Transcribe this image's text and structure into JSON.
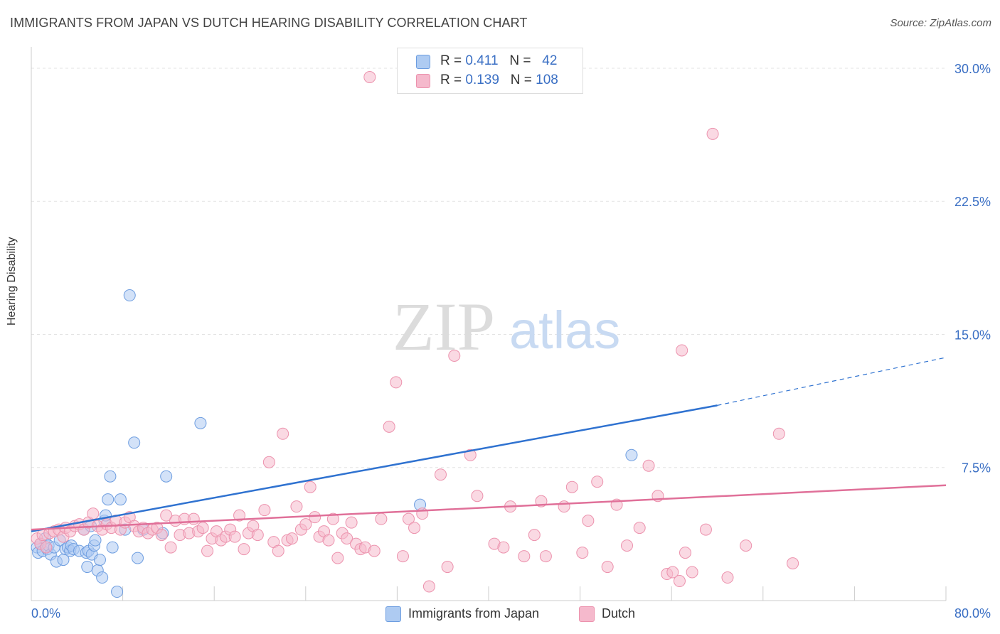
{
  "title": "IMMIGRANTS FROM JAPAN VS DUTCH HEARING DISABILITY CORRELATION CHART",
  "source": "Source: ZipAtlas.com",
  "watermark": {
    "zip": "ZIP",
    "atlas": "atlas"
  },
  "legend": {
    "rows": [
      {
        "r_label": "R = ",
        "r_value": "0.411",
        "n_label": "N = ",
        "n_value": "42",
        "color": "#aecbf2"
      },
      {
        "r_label": "R = ",
        "r_value": "0.139",
        "n_label": "N = ",
        "n_value": "108",
        "color": "#f5b9cc"
      }
    ]
  },
  "chart_data": {
    "type": "scatter",
    "ylabel": "Hearing Disability",
    "xlim": [
      0,
      80
    ],
    "ylim": [
      0,
      31.2
    ],
    "x_tick_labels": [
      "0.0%",
      "80.0%"
    ],
    "y_ticks": [
      7.5,
      15.0,
      22.5,
      30.0
    ],
    "y_tick_labels": [
      "7.5%",
      "15.0%",
      "22.5%",
      "30.0%"
    ],
    "grid": true,
    "legend_position": "top-center",
    "series": [
      {
        "name": "Immigrants from Japan",
        "color": "#6d9de0",
        "fill": "#aecbf2",
        "line_color": "#2f72d0",
        "trend": {
          "x0": 0,
          "y0": 3.9,
          "x1": 60,
          "y1": 11.0,
          "dash_x1": 80,
          "dash_y1": 13.7
        },
        "points": [
          [
            0.5,
            3.0
          ],
          [
            0.6,
            2.7
          ],
          [
            0.8,
            3.2
          ],
          [
            1.0,
            2.8
          ],
          [
            1.2,
            3.5
          ],
          [
            1.4,
            2.9
          ],
          [
            1.5,
            3.1
          ],
          [
            1.7,
            2.6
          ],
          [
            2.0,
            3.0
          ],
          [
            2.2,
            2.2
          ],
          [
            2.5,
            3.4
          ],
          [
            2.8,
            2.3
          ],
          [
            3.0,
            2.9
          ],
          [
            3.2,
            3.0
          ],
          [
            3.4,
            2.8
          ],
          [
            3.5,
            3.1
          ],
          [
            3.7,
            2.9
          ],
          [
            4.2,
            2.8
          ],
          [
            4.6,
            4.0
          ],
          [
            4.8,
            2.7
          ],
          [
            4.9,
            1.9
          ],
          [
            5.0,
            2.8
          ],
          [
            5.2,
            4.2
          ],
          [
            5.3,
            2.6
          ],
          [
            5.5,
            3.1
          ],
          [
            5.6,
            3.4
          ],
          [
            5.8,
            1.7
          ],
          [
            6.0,
            2.3
          ],
          [
            6.2,
            1.3
          ],
          [
            6.4,
            4.5
          ],
          [
            6.5,
            4.8
          ],
          [
            6.7,
            5.7
          ],
          [
            6.9,
            7.0
          ],
          [
            7.1,
            3.0
          ],
          [
            7.5,
            0.5
          ],
          [
            7.8,
            5.7
          ],
          [
            8.2,
            4.0
          ],
          [
            8.6,
            17.2
          ],
          [
            9.0,
            8.9
          ],
          [
            9.3,
            2.4
          ],
          [
            11.8,
            7.0
          ],
          [
            14.8,
            10.0
          ]
        ],
        "points_extra": [
          [
            9.8,
            4.0
          ],
          [
            11.5,
            3.8
          ],
          [
            34.0,
            5.4
          ],
          [
            52.5,
            8.2
          ]
        ]
      },
      {
        "name": "Dutch",
        "color": "#ec92ad",
        "fill": "#f5b9cc",
        "line_color": "#e07099",
        "trend": {
          "x0": 0,
          "y0": 4.0,
          "x1": 80,
          "y1": 6.5
        },
        "points": [
          [
            0.5,
            3.5
          ],
          [
            0.8,
            3.2
          ],
          [
            1.0,
            3.7
          ],
          [
            1.3,
            3.0
          ],
          [
            1.6,
            3.8
          ],
          [
            2.0,
            3.9
          ],
          [
            2.4,
            4.0
          ],
          [
            2.8,
            3.6
          ],
          [
            3.0,
            4.1
          ],
          [
            3.4,
            3.9
          ],
          [
            3.8,
            4.2
          ],
          [
            4.2,
            4.3
          ],
          [
            4.6,
            4.0
          ],
          [
            5.0,
            4.4
          ],
          [
            5.4,
            4.9
          ],
          [
            5.8,
            4.2
          ],
          [
            6.2,
            4.0
          ],
          [
            6.6,
            4.3
          ],
          [
            7.0,
            4.1
          ],
          [
            7.4,
            4.5
          ],
          [
            7.8,
            4.0
          ],
          [
            8.2,
            4.4
          ],
          [
            8.6,
            4.7
          ],
          [
            9.0,
            4.2
          ],
          [
            9.4,
            3.9
          ],
          [
            9.8,
            4.1
          ],
          [
            10.2,
            3.8
          ],
          [
            10.6,
            4.0
          ],
          [
            11.0,
            4.1
          ],
          [
            11.4,
            3.7
          ],
          [
            11.8,
            4.8
          ],
          [
            12.2,
            3.0
          ],
          [
            12.6,
            4.5
          ],
          [
            13.0,
            3.7
          ],
          [
            13.4,
            4.6
          ],
          [
            13.8,
            3.8
          ],
          [
            14.2,
            4.6
          ],
          [
            14.6,
            3.9
          ],
          [
            15.0,
            4.1
          ],
          [
            15.4,
            2.8
          ],
          [
            15.8,
            3.5
          ],
          [
            16.2,
            3.9
          ],
          [
            16.6,
            3.4
          ],
          [
            17.0,
            3.6
          ],
          [
            17.4,
            4.0
          ],
          [
            17.8,
            3.6
          ],
          [
            18.2,
            4.8
          ],
          [
            18.6,
            2.9
          ],
          [
            19.0,
            3.8
          ],
          [
            19.4,
            4.2
          ],
          [
            19.8,
            3.7
          ],
          [
            20.4,
            5.1
          ],
          [
            20.8,
            7.8
          ],
          [
            21.2,
            3.3
          ],
          [
            21.6,
            2.8
          ],
          [
            22.0,
            9.4
          ],
          [
            22.4,
            3.4
          ],
          [
            22.8,
            3.5
          ],
          [
            23.2,
            5.3
          ],
          [
            23.6,
            4.0
          ],
          [
            24.0,
            4.3
          ],
          [
            24.4,
            6.4
          ],
          [
            24.8,
            4.7
          ],
          [
            25.2,
            3.6
          ],
          [
            25.6,
            3.9
          ],
          [
            26.0,
            3.4
          ],
          [
            26.4,
            4.6
          ],
          [
            26.8,
            2.4
          ],
          [
            27.2,
            3.8
          ],
          [
            27.6,
            3.5
          ],
          [
            28.0,
            4.4
          ],
          [
            28.4,
            3.2
          ],
          [
            28.8,
            2.9
          ],
          [
            29.2,
            3.0
          ],
          [
            29.6,
            29.5
          ],
          [
            30.0,
            2.8
          ],
          [
            30.6,
            4.6
          ],
          [
            31.3,
            9.8
          ],
          [
            31.9,
            12.3
          ],
          [
            32.5,
            2.5
          ],
          [
            33.0,
            4.6
          ],
          [
            33.5,
            4.1
          ],
          [
            34.2,
            4.9
          ],
          [
            34.8,
            0.8
          ],
          [
            35.8,
            7.1
          ],
          [
            36.4,
            1.9
          ],
          [
            37.0,
            13.8
          ],
          [
            38.4,
            8.2
          ],
          [
            39.0,
            5.9
          ],
          [
            40.5,
            3.2
          ],
          [
            41.3,
            3.0
          ],
          [
            41.9,
            5.3
          ],
          [
            43.1,
            2.5
          ],
          [
            44.0,
            3.7
          ],
          [
            44.6,
            5.6
          ],
          [
            45.0,
            2.5
          ],
          [
            46.6,
            5.3
          ],
          [
            47.3,
            6.4
          ],
          [
            48.2,
            2.7
          ],
          [
            48.7,
            4.5
          ],
          [
            49.5,
            6.7
          ],
          [
            50.4,
            1.9
          ],
          [
            51.2,
            5.4
          ],
          [
            52.1,
            3.1
          ],
          [
            53.2,
            4.1
          ],
          [
            54.0,
            7.6
          ],
          [
            54.8,
            5.9
          ],
          [
            55.6,
            1.5
          ],
          [
            56.1,
            1.6
          ],
          [
            56.7,
            1.1
          ]
        ],
        "points_extra": [
          [
            56.9,
            14.1
          ],
          [
            57.2,
            2.7
          ],
          [
            57.8,
            1.6
          ],
          [
            59.0,
            4.0
          ],
          [
            59.6,
            26.3
          ],
          [
            60.9,
            1.3
          ],
          [
            62.5,
            3.1
          ],
          [
            65.4,
            9.4
          ],
          [
            66.6,
            2.1
          ]
        ]
      }
    ]
  }
}
